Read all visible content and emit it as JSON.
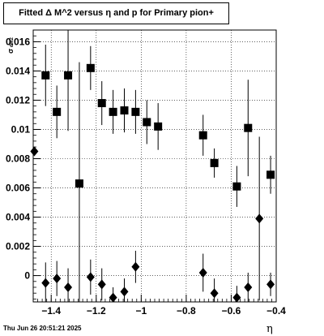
{
  "title": "Fitted Δ M^2 versus η and p for Primary pion+",
  "timestamp": "Thu Jun 26 20:51:21 2025",
  "chart_data": {
    "type": "scatter",
    "title": "Fitted Δ M^2 versus η and p for Primary pion+",
    "xlabel": "η",
    "ylabel": "σ dM2",
    "xlim": [
      -1.48,
      -0.4
    ],
    "ylim": [
      -0.0018,
      0.0168
    ],
    "xticks": [
      -1.4,
      -1.2,
      -1.0,
      -0.8,
      -0.6,
      -0.4
    ],
    "xtick_labels": [
      "−1.4",
      "−1.2",
      "−1",
      "−0.8",
      "−0.6",
      "−0.4"
    ],
    "yticks": [
      0,
      0.002,
      0.004,
      0.006,
      0.008,
      0.01,
      0.012,
      0.014,
      0.016
    ],
    "ytick_labels": [
      "0",
      "0.002",
      "0.004",
      "0.006",
      "0.008",
      "0.01",
      "0.012",
      "0.014",
      "0.016"
    ],
    "grid": true,
    "series": [
      {
        "marker": "square",
        "points": [
          {
            "x": -1.425,
            "y": 0.0137,
            "err": 0.0021
          },
          {
            "x": -1.375,
            "y": 0.0112,
            "err": 0.0018
          },
          {
            "x": -1.325,
            "y": 0.0137,
            "err": 0.0038
          },
          {
            "x": -1.275,
            "y": 0.0063,
            "err": 0.0083
          },
          {
            "x": -1.225,
            "y": 0.0142,
            "err": 0.0015
          },
          {
            "x": -1.175,
            "y": 0.0118,
            "err": 0.0015
          },
          {
            "x": -1.125,
            "y": 0.0112,
            "err": 0.0015
          },
          {
            "x": -1.075,
            "y": 0.0113,
            "err": 0.0015
          },
          {
            "x": -1.025,
            "y": 0.0112,
            "err": 0.0015
          },
          {
            "x": -0.975,
            "y": 0.0105,
            "err": 0.0015
          },
          {
            "x": -0.925,
            "y": 0.0102,
            "err": 0.0016
          },
          {
            "x": -0.725,
            "y": 0.0096,
            "err": 0.0014
          },
          {
            "x": -0.675,
            "y": 0.0077,
            "err": 0.001
          },
          {
            "x": -0.575,
            "y": 0.0061,
            "err": 0.0014
          },
          {
            "x": -0.525,
            "y": 0.0101,
            "err": 0.0033
          },
          {
            "x": -0.425,
            "y": 0.0069,
            "err": 0.0013
          }
        ]
      },
      {
        "marker": "diamond",
        "points": [
          {
            "x": -1.475,
            "y": 0.0085,
            "err": 0.0
          },
          {
            "x": -1.425,
            "y": -0.0005,
            "err": 0.0014
          },
          {
            "x": -1.375,
            "y": -0.0002,
            "err": 0.0012
          },
          {
            "x": -1.325,
            "y": -0.0008,
            "err": 0.0013
          },
          {
            "x": -1.225,
            "y": -0.0001,
            "err": 0.0012
          },
          {
            "x": -1.175,
            "y": -0.0006,
            "err": 0.0011
          },
          {
            "x": -1.125,
            "y": -0.0015,
            "err": 0.0007
          },
          {
            "x": -1.075,
            "y": -0.0011,
            "err": 0.0009
          },
          {
            "x": -1.025,
            "y": 0.0006,
            "err": 0.0011
          },
          {
            "x": -0.725,
            "y": 0.0002,
            "err": 0.0013
          },
          {
            "x": -0.675,
            "y": -0.0012,
            "err": 0.001
          },
          {
            "x": -0.575,
            "y": -0.0015,
            "err": 0.0008
          },
          {
            "x": -0.525,
            "y": -0.0008,
            "err": 0.001
          },
          {
            "x": -0.475,
            "y": 0.0039,
            "err": 0.0056
          },
          {
            "x": -0.425,
            "y": -0.0006,
            "err": 0.0008
          }
        ]
      }
    ]
  }
}
